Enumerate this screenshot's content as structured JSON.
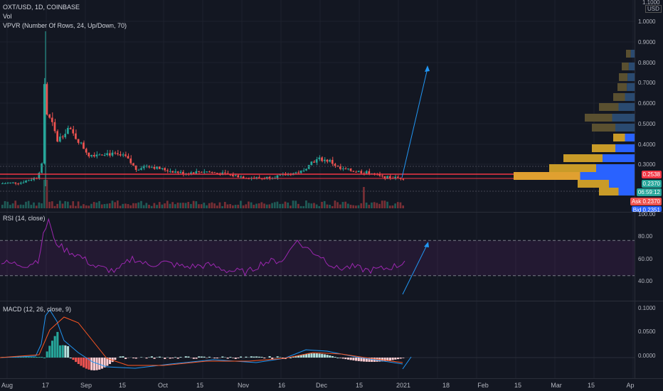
{
  "header": {
    "symbol": "OXT/USD, 1D, COINBASE",
    "vol_label": "Vol",
    "vpvr_label": "VPVR (Number Of Rows, 24, Up/Down, 70)"
  },
  "price_axis": {
    "currency_top": "1.1000",
    "currency_unit": "USD",
    "ticks": [
      "1.0000",
      "0.9000",
      "0.8000",
      "0.7000",
      "0.6000",
      "0.5000",
      "0.4000",
      "0.3000"
    ],
    "tags": [
      {
        "text": "0.2538",
        "color": "#f23645"
      },
      {
        "text": "0.2370",
        "color": "#26a69a"
      },
      {
        "text": "06:59:12",
        "color": "#26a69a"
      },
      {
        "text": "Ask 0.2370",
        "color": "#ef5350"
      },
      {
        "text": "Bid 0.2351",
        "color": "#2962ff"
      }
    ]
  },
  "rsi": {
    "label": "RSI (14, close)",
    "ticks": [
      "100.00",
      "80.00",
      "60.00",
      "40.00"
    ],
    "upper": 70,
    "lower": 30
  },
  "macd": {
    "label": "MACD (12, 26, close, 9)",
    "ticks": [
      "0.1000",
      "0.0500",
      "0.0000"
    ]
  },
  "time_axis": {
    "labels": [
      "Aug",
      "17",
      "Sep",
      "15",
      "Oct",
      "15",
      "Nov",
      "16",
      "Dec",
      "15",
      "2021",
      "18",
      "Feb",
      "15",
      "Mar",
      "15",
      "Ap"
    ]
  },
  "colors": {
    "up": "#26a69a",
    "down": "#ef5350",
    "rsi": "#9c27b0",
    "macd": "#2196f3",
    "signal": "#ff5722",
    "level": "#f23645"
  }
}
